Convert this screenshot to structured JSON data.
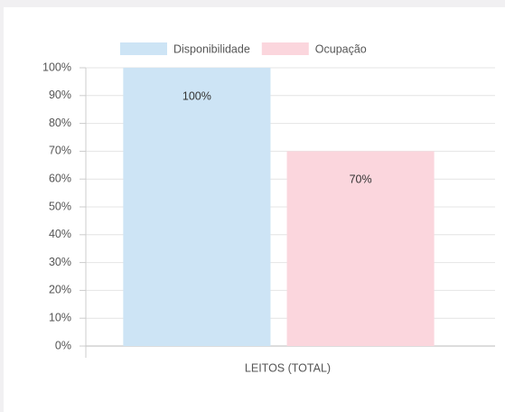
{
  "chart_data": {
    "type": "bar",
    "categories": [
      "LEITOS (TOTAL)"
    ],
    "series": [
      {
        "name": "Disponibilidade",
        "color": "#cde4f5",
        "values": [
          100
        ],
        "value_labels": [
          "100%"
        ]
      },
      {
        "name": "Ocupação",
        "color": "#fbd6dd",
        "values": [
          70
        ],
        "value_labels": [
          "70%"
        ]
      }
    ],
    "ylim": [
      0,
      100
    ],
    "yticks": [
      {
        "value": 0,
        "label": "0%"
      },
      {
        "value": 10,
        "label": "10%"
      },
      {
        "value": 20,
        "label": "20%"
      },
      {
        "value": 30,
        "label": "30%"
      },
      {
        "value": 40,
        "label": "40%"
      },
      {
        "value": 50,
        "label": "50%"
      },
      {
        "value": 60,
        "label": "60%"
      },
      {
        "value": 70,
        "label": "70%"
      },
      {
        "value": 80,
        "label": "80%"
      },
      {
        "value": 90,
        "label": "90%"
      },
      {
        "value": 100,
        "label": "100%"
      }
    ],
    "grid": true,
    "legend": "top"
  }
}
